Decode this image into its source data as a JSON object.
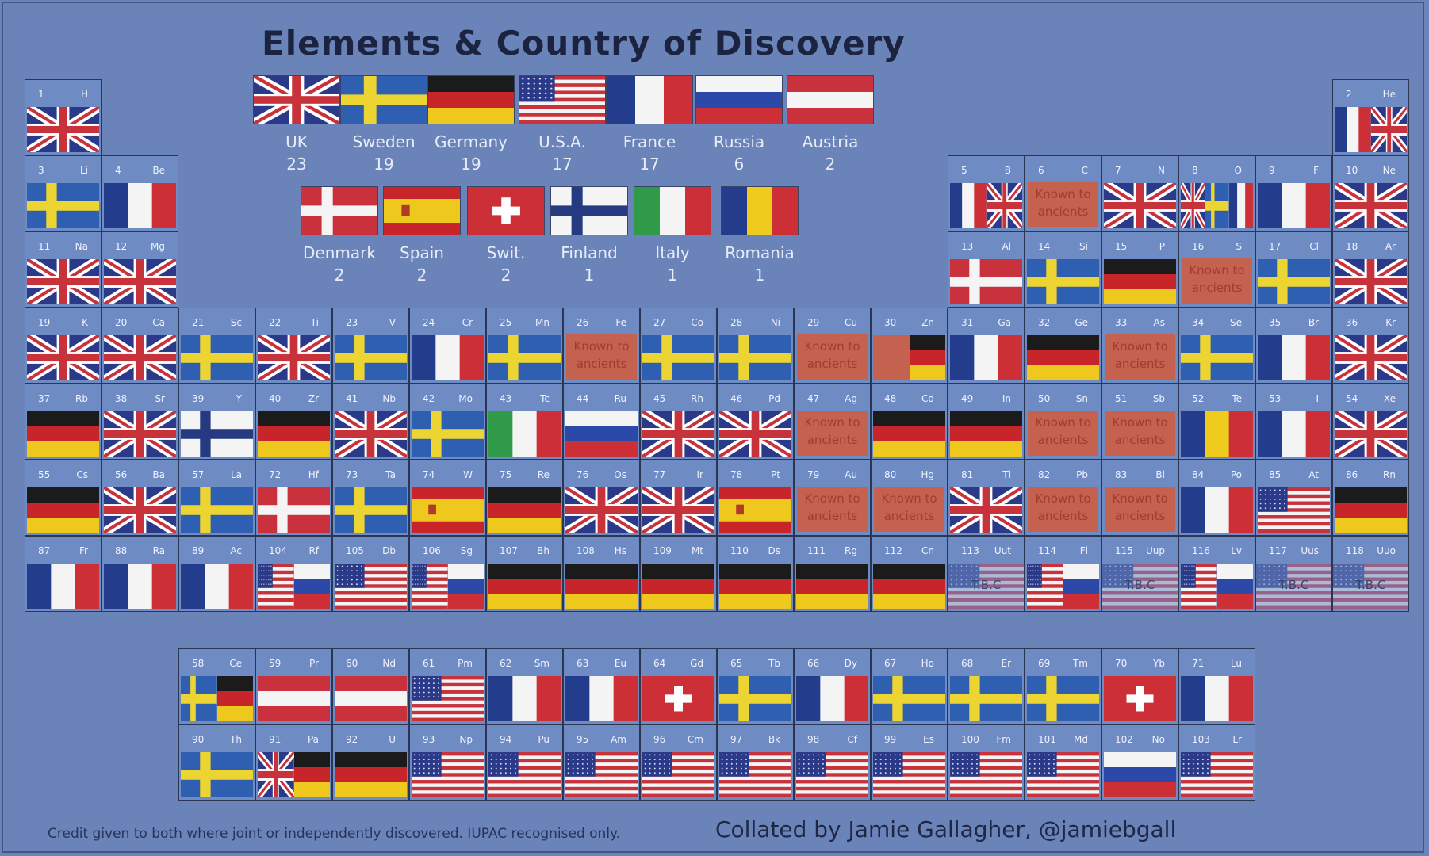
{
  "title": "Elements & Country of Discovery",
  "legend": [
    {
      "country": "UK",
      "count": "23",
      "flag": "uk"
    },
    {
      "country": "Sweden",
      "count": "19",
      "flag": "se"
    },
    {
      "country": "Germany",
      "count": "19",
      "flag": "de"
    },
    {
      "country": "U.S.A.",
      "count": "17",
      "flag": "us"
    },
    {
      "country": "France",
      "count": "17",
      "flag": "fr"
    },
    {
      "country": "Russia",
      "count": "6",
      "flag": "ru"
    },
    {
      "country": "Austria",
      "count": "2",
      "flag": "at"
    },
    {
      "country": "Denmark",
      "count": "2",
      "flag": "dk"
    },
    {
      "country": "Spain",
      "count": "2",
      "flag": "es"
    },
    {
      "country": "Swit.",
      "count": "2",
      "flag": "ch"
    },
    {
      "country": "Finland",
      "count": "1",
      "flag": "fi"
    },
    {
      "country": "Italy",
      "count": "1",
      "flag": "it"
    },
    {
      "country": "Romania",
      "count": "1",
      "flag": "ro"
    }
  ],
  "known_text": "Known to ancients",
  "tbc_text": "T.B.C",
  "elements": [
    [
      "1",
      "H",
      "uk"
    ],
    [
      "2",
      "He",
      "fr|uk"
    ],
    [
      "3",
      "Li",
      "se"
    ],
    [
      "4",
      "Be",
      "fr"
    ],
    [
      "5",
      "B",
      "fr|uk"
    ],
    [
      "6",
      "C",
      "known"
    ],
    [
      "7",
      "N",
      "uk"
    ],
    [
      "8",
      "O",
      "uk|se|fr"
    ],
    [
      "9",
      "F",
      "fr"
    ],
    [
      "10",
      "Ne",
      "uk"
    ],
    [
      "11",
      "Na",
      "uk"
    ],
    [
      "12",
      "Mg",
      "uk"
    ],
    [
      "13",
      "Al",
      "dk"
    ],
    [
      "14",
      "Si",
      "se"
    ],
    [
      "15",
      "P",
      "de"
    ],
    [
      "16",
      "S",
      "known"
    ],
    [
      "17",
      "Cl",
      "se"
    ],
    [
      "18",
      "Ar",
      "uk"
    ],
    [
      "19",
      "K",
      "uk"
    ],
    [
      "20",
      "Ca",
      "uk"
    ],
    [
      "21",
      "Sc",
      "se"
    ],
    [
      "22",
      "Ti",
      "uk"
    ],
    [
      "23",
      "V",
      "se"
    ],
    [
      "24",
      "Cr",
      "fr"
    ],
    [
      "25",
      "Mn",
      "se"
    ],
    [
      "26",
      "Fe",
      "known"
    ],
    [
      "27",
      "Co",
      "se"
    ],
    [
      "28",
      "Ni",
      "se"
    ],
    [
      "29",
      "Cu",
      "known"
    ],
    [
      "30",
      "Zn",
      "known|de"
    ],
    [
      "31",
      "Ga",
      "fr"
    ],
    [
      "32",
      "Ge",
      "de"
    ],
    [
      "33",
      "As",
      "known"
    ],
    [
      "34",
      "Se",
      "se"
    ],
    [
      "35",
      "Br",
      "fr"
    ],
    [
      "36",
      "Kr",
      "uk"
    ],
    [
      "37",
      "Rb",
      "de"
    ],
    [
      "38",
      "Sr",
      "uk"
    ],
    [
      "39",
      "Y",
      "fi"
    ],
    [
      "40",
      "Zr",
      "de"
    ],
    [
      "41",
      "Nb",
      "uk"
    ],
    [
      "42",
      "Mo",
      "se"
    ],
    [
      "43",
      "Tc",
      "it"
    ],
    [
      "44",
      "Ru",
      "ru"
    ],
    [
      "45",
      "Rh",
      "uk"
    ],
    [
      "46",
      "Pd",
      "uk"
    ],
    [
      "47",
      "Ag",
      "known"
    ],
    [
      "48",
      "Cd",
      "de"
    ],
    [
      "49",
      "In",
      "de"
    ],
    [
      "50",
      "Sn",
      "known"
    ],
    [
      "51",
      "Sb",
      "known"
    ],
    [
      "52",
      "Te",
      "ro"
    ],
    [
      "53",
      "I",
      "fr"
    ],
    [
      "54",
      "Xe",
      "uk"
    ],
    [
      "55",
      "Cs",
      "de"
    ],
    [
      "56",
      "Ba",
      "uk"
    ],
    [
      "57",
      "La",
      "se"
    ],
    [
      "72",
      "Hf",
      "dk"
    ],
    [
      "73",
      "Ta",
      "se"
    ],
    [
      "74",
      "W",
      "es"
    ],
    [
      "75",
      "Re",
      "de"
    ],
    [
      "76",
      "Os",
      "uk"
    ],
    [
      "77",
      "Ir",
      "uk"
    ],
    [
      "78",
      "Pt",
      "es"
    ],
    [
      "79",
      "Au",
      "known"
    ],
    [
      "80",
      "Hg",
      "known"
    ],
    [
      "81",
      "Tl",
      "uk"
    ],
    [
      "82",
      "Pb",
      "known"
    ],
    [
      "83",
      "Bi",
      "known"
    ],
    [
      "84",
      "Po",
      "fr"
    ],
    [
      "85",
      "At",
      "us"
    ],
    [
      "86",
      "Rn",
      "de"
    ],
    [
      "87",
      "Fr",
      "fr"
    ],
    [
      "88",
      "Ra",
      "fr"
    ],
    [
      "89",
      "Ac",
      "fr"
    ],
    [
      "104",
      "Rf",
      "us|ru"
    ],
    [
      "105",
      "Db",
      "us"
    ],
    [
      "106",
      "Sg",
      "us|ru"
    ],
    [
      "107",
      "Bh",
      "de"
    ],
    [
      "108",
      "Hs",
      "de"
    ],
    [
      "109",
      "Mt",
      "de"
    ],
    [
      "110",
      "Ds",
      "de"
    ],
    [
      "111",
      "Rg",
      "de"
    ],
    [
      "112",
      "Cn",
      "de"
    ],
    [
      "113",
      "Uut",
      "tbc"
    ],
    [
      "114",
      "Fl",
      "us|ru"
    ],
    [
      "115",
      "Uup",
      "tbc"
    ],
    [
      "116",
      "Lv",
      "us|ru"
    ],
    [
      "117",
      "Uus",
      "tbc"
    ],
    [
      "118",
      "Uuo",
      "tbc"
    ],
    [
      "58",
      "Ce",
      "se|de"
    ],
    [
      "59",
      "Pr",
      "at"
    ],
    [
      "60",
      "Nd",
      "at"
    ],
    [
      "61",
      "Pm",
      "us"
    ],
    [
      "62",
      "Sm",
      "fr"
    ],
    [
      "63",
      "Eu",
      "fr"
    ],
    [
      "64",
      "Gd",
      "ch"
    ],
    [
      "65",
      "Tb",
      "se"
    ],
    [
      "66",
      "Dy",
      "fr"
    ],
    [
      "67",
      "Ho",
      "se"
    ],
    [
      "68",
      "Er",
      "se"
    ],
    [
      "69",
      "Tm",
      "se"
    ],
    [
      "70",
      "Yb",
      "ch"
    ],
    [
      "71",
      "Lu",
      "fr"
    ],
    [
      "90",
      "Th",
      "se"
    ],
    [
      "91",
      "Pa",
      "uk|de"
    ],
    [
      "92",
      "U",
      "de"
    ],
    [
      "93",
      "Np",
      "us"
    ],
    [
      "94",
      "Pu",
      "us"
    ],
    [
      "95",
      "Am",
      "us"
    ],
    [
      "96",
      "Cm",
      "us"
    ],
    [
      "97",
      "Bk",
      "us"
    ],
    [
      "98",
      "Cf",
      "us"
    ],
    [
      "99",
      "Es",
      "us"
    ],
    [
      "100",
      "Fm",
      "us"
    ],
    [
      "101",
      "Md",
      "us"
    ],
    [
      "102",
      "No",
      "ru"
    ],
    [
      "103",
      "Lr",
      "us"
    ]
  ],
  "footer_note": "Credit given to both where joint or independently discovered. IUPAC recognised only.",
  "footer_credit": "Collated by Jamie Gallagher, @jamiebgall"
}
